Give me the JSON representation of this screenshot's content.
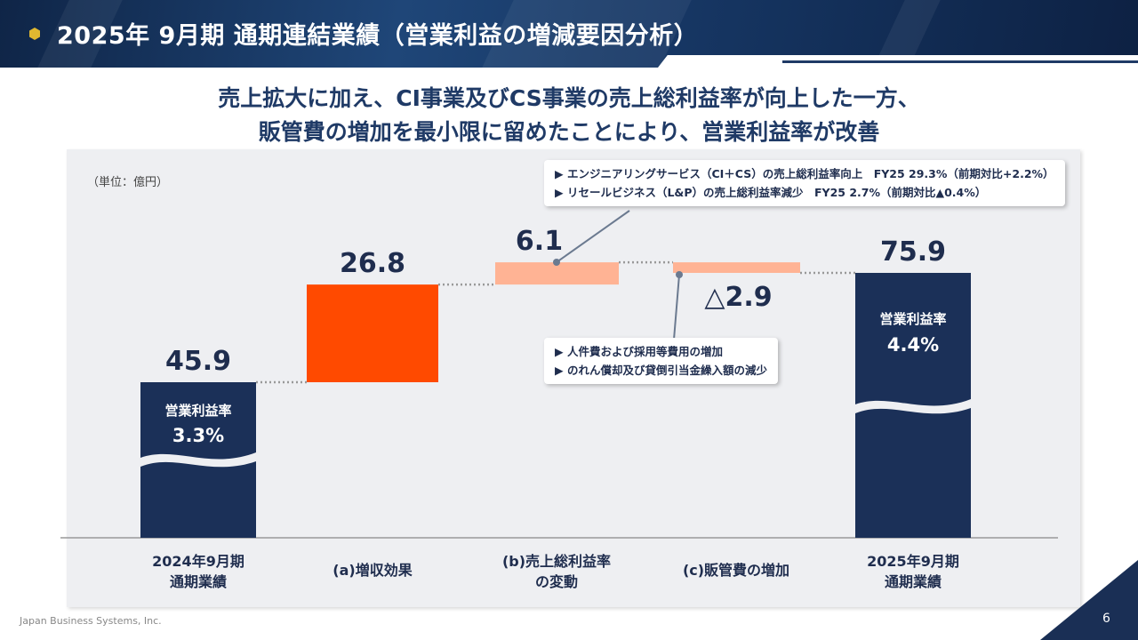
{
  "header": {
    "title": "2025年 9月期 通期連結業績（営業利益の増減要因分析）"
  },
  "headline": {
    "line1": "売上拡大に加え、CI事業及びCS事業の売上総利益率が向上した一方、",
    "line2": "販管費の増加を最小限に留めたことにより、営業利益率が改善"
  },
  "unit": "（単位：億円）",
  "callouts": {
    "gross_margin": [
      "▶ エンジニアリングサービス（CI＋CS）の売上総利益率向上　FY25 29.3%（前期対比+2.2%）",
      "▶ リセールビジネス（L&P）の売上総利益率減少　FY25 2.7%（前期対比▲0.4%）"
    ],
    "sga": [
      "▶ 人件費および採用等費用の増加",
      "▶ のれん償却及び貸倒引当金繰入額の減少"
    ]
  },
  "chart_data": {
    "type": "waterfall",
    "categories": [
      [
        "2024年9月期",
        "通期業績"
      ],
      [
        "(a)増収効果"
      ],
      [
        "(b)売上総利益率",
        "の変動"
      ],
      [
        "(c)販管費の増加"
      ],
      [
        "2025年9月期",
        "通期業績"
      ]
    ],
    "values": [
      45.9,
      26.8,
      6.1,
      -2.9,
      75.9
    ],
    "kinds": [
      "total",
      "increase",
      "increase",
      "decrease",
      "total"
    ],
    "data_labels": [
      "45.9",
      "26.8",
      "6.1",
      "△2.9",
      "75.9"
    ],
    "bar_annotations": [
      {
        "label": "営業利益率",
        "value": "3.3%"
      },
      null,
      null,
      null,
      {
        "label": "営業利益率",
        "value": "4.4%"
      }
    ],
    "colors": {
      "total": "#1b3058",
      "increase": "#ff4a00",
      "increase_light": "#ffb394",
      "decrease": "#ffb394",
      "connector": "#999999"
    },
    "axis_broken": true
  },
  "footer": {
    "company": "Japan Business Systems, Inc.",
    "page": "6"
  }
}
